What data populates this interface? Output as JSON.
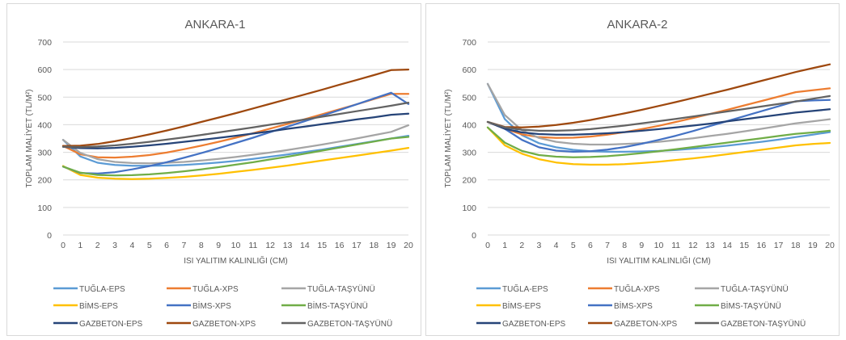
{
  "chart_data": [
    {
      "type": "line",
      "title": "ANKARA-1",
      "xlabel": "ISI YALITIM KALINLIĞI (CM)",
      "ylabel": "TOPLAM MALİYET (TL/M²)",
      "ylim": [
        0,
        700
      ],
      "yticks": [
        0,
        100,
        200,
        300,
        400,
        500,
        600,
        700
      ],
      "x": [
        0,
        1,
        2,
        3,
        4,
        5,
        6,
        7,
        8,
        9,
        10,
        11,
        12,
        13,
        14,
        15,
        16,
        17,
        18,
        19,
        20
      ],
      "grid": true,
      "legend_position": "bottom",
      "series": [
        {
          "name": "TUĞLA-EPS",
          "color": "#5B9BD5",
          "values": [
            345,
            285,
            262,
            254,
            251,
            251,
            252,
            254,
            258,
            263,
            269,
            276,
            284,
            292,
            301,
            310,
            320,
            330,
            340,
            350,
            360
          ]
        },
        {
          "name": "TUĞLA-XPS",
          "color": "#ED7D31",
          "values": [
            323,
            293,
            282,
            281,
            284,
            290,
            299,
            311,
            324,
            338,
            353,
            369,
            386,
            403,
            420,
            438,
            456,
            474,
            493,
            512,
            512
          ]
        },
        {
          "name": "TUĞLA-TAŞYÜNÜ",
          "color": "#A5A5A5",
          "values": [
            345,
            298,
            275,
            265,
            261,
            260,
            262,
            265,
            270,
            276,
            283,
            291,
            299,
            308,
            318,
            328,
            339,
            350,
            362,
            374,
            398
          ]
        },
        {
          "name": "BİMS-EPS",
          "color": "#FFC000",
          "values": [
            250,
            218,
            208,
            204,
            203,
            204,
            207,
            211,
            216,
            222,
            229,
            236,
            244,
            252,
            261,
            270,
            279,
            288,
            297,
            306,
            316
          ]
        },
        {
          "name": "BİMS-XPS",
          "color": "#4472C4",
          "values": [
            248,
            225,
            223,
            228,
            238,
            250,
            264,
            280,
            297,
            315,
            334,
            353,
            373,
            393,
            413,
            433,
            453,
            474,
            495,
            516,
            475
          ]
        },
        {
          "name": "BİMS-TAŞYÜNÜ",
          "color": "#70AD47",
          "values": [
            248,
            226,
            218,
            216,
            217,
            220,
            225,
            231,
            238,
            246,
            255,
            264,
            274,
            284,
            295,
            306,
            317,
            328,
            339,
            350,
            356
          ]
        },
        {
          "name": "GAZBETON-EPS",
          "color": "#264478",
          "values": [
            320,
            315,
            314,
            316,
            320,
            325,
            331,
            338,
            345,
            352,
            360,
            368,
            376,
            385,
            393,
            402,
            410,
            419,
            427,
            436,
            440
          ]
        },
        {
          "name": "GAZBETON-XPS",
          "color": "#9E480E",
          "values": [
            323,
            324,
            330,
            340,
            352,
            365,
            379,
            394,
            410,
            426,
            442,
            459,
            476,
            493,
            510,
            527,
            545,
            562,
            580,
            598,
            600
          ]
        },
        {
          "name": "GAZBETON-TAŞYÜNÜ",
          "color": "#636363",
          "values": [
            320,
            319,
            321,
            325,
            331,
            338,
            346,
            354,
            363,
            372,
            381,
            390,
            400,
            409,
            419,
            429,
            439,
            449,
            459,
            469,
            480
          ]
        }
      ]
    },
    {
      "type": "line",
      "title": "ANKARA-2",
      "xlabel": "ISI YALITIM KALINLIĞI (CM)",
      "ylabel": "TOPLAM MALİYET (TL/M²)",
      "ylim": [
        0,
        700
      ],
      "yticks": [
        0,
        100,
        200,
        300,
        400,
        500,
        600,
        700
      ],
      "x": [
        0,
        1,
        2,
        3,
        4,
        5,
        6,
        7,
        8,
        9,
        10,
        11,
        12,
        13,
        14,
        15,
        16,
        17,
        18,
        19,
        20
      ],
      "grid": true,
      "legend_position": "bottom",
      "series": [
        {
          "name": "TUĞLA-EPS",
          "color": "#5B9BD5",
          "values": [
            548,
            420,
            362,
            333,
            318,
            309,
            304,
            302,
            302,
            303,
            305,
            308,
            313,
            318,
            324,
            331,
            338,
            346,
            355,
            364,
            373
          ]
        },
        {
          "name": "TUĞLA-XPS",
          "color": "#ED7D31",
          "values": [
            410,
            385,
            365,
            355,
            352,
            353,
            357,
            364,
            373,
            384,
            396,
            410,
            424,
            439,
            454,
            470,
            486,
            502,
            518,
            525,
            532
          ]
        },
        {
          "name": "TUĞLA-TAŞYÜNÜ",
          "color": "#A5A5A5",
          "values": [
            548,
            435,
            380,
            352,
            338,
            331,
            328,
            328,
            330,
            333,
            338,
            344,
            351,
            359,
            367,
            376,
            385,
            395,
            405,
            412,
            420
          ]
        },
        {
          "name": "BİMS-EPS",
          "color": "#FFC000",
          "values": [
            390,
            325,
            295,
            275,
            263,
            257,
            255,
            255,
            257,
            261,
            266,
            272,
            278,
            285,
            293,
            301,
            309,
            317,
            325,
            330,
            334
          ]
        },
        {
          "name": "BİMS-XPS",
          "color": "#4472C4",
          "values": [
            410,
            385,
            345,
            318,
            306,
            302,
            304,
            310,
            319,
            331,
            345,
            360,
            377,
            395,
            413,
            431,
            449,
            467,
            485,
            488,
            490
          ]
        },
        {
          "name": "BİMS-TAŞYÜNÜ",
          "color": "#70AD47",
          "values": [
            390,
            335,
            305,
            290,
            284,
            282,
            283,
            286,
            291,
            297,
            304,
            311,
            319,
            327,
            335,
            343,
            351,
            359,
            367,
            372,
            378
          ]
        },
        {
          "name": "GAZBETON-EPS",
          "color": "#264478",
          "values": [
            410,
            385,
            372,
            366,
            364,
            364,
            366,
            369,
            373,
            378,
            384,
            390,
            397,
            404,
            412,
            420,
            428,
            436,
            444,
            450,
            456
          ]
        },
        {
          "name": "GAZBETON-XPS",
          "color": "#9E480E",
          "values": [
            410,
            392,
            390,
            393,
            399,
            407,
            417,
            429,
            441,
            454,
            468,
            482,
            497,
            512,
            527,
            543,
            559,
            575,
            591,
            605,
            619
          ]
        },
        {
          "name": "GAZBETON-TAŞYÜNÜ",
          "color": "#636363",
          "values": [
            410,
            390,
            382,
            378,
            378,
            380,
            384,
            390,
            397,
            405,
            413,
            421,
            430,
            439,
            448,
            457,
            466,
            475,
            484,
            494,
            504
          ]
        }
      ]
    }
  ]
}
